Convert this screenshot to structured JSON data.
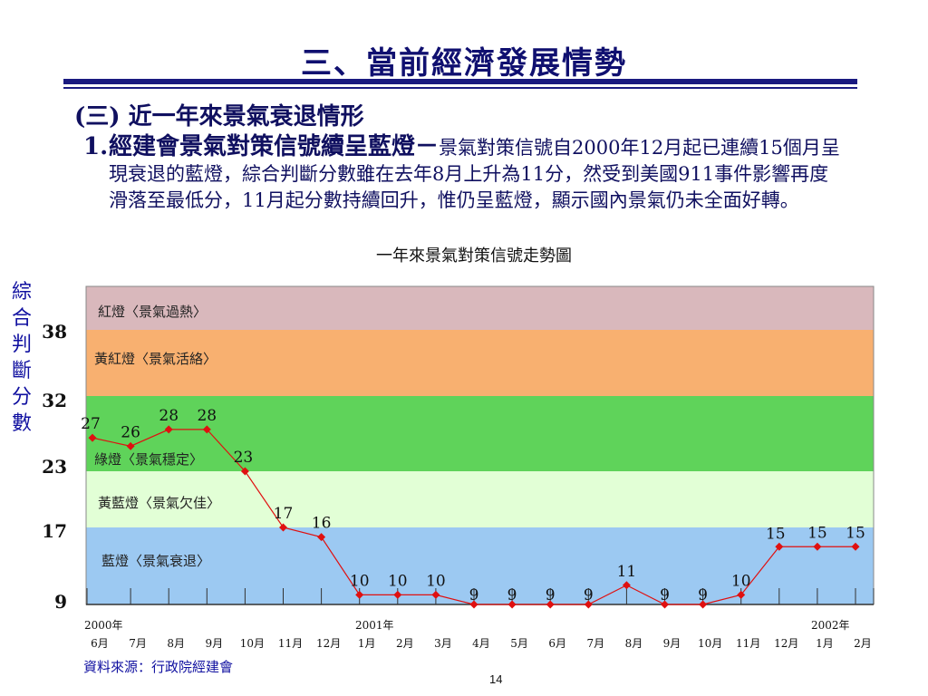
{
  "slide": {
    "title": "三、當前經濟發展情勢",
    "subheading": "(三) 近一年來景氣衰退情形",
    "item_number": "1.",
    "item_heading": "經建會景氣對策信號續呈藍燈－",
    "item_body": "景氣對策信號自2000年12月起已連續15個月呈現衰退的藍燈，綜合判斷分數雖在去年8月上升為11分，然受到美國911事件影響再度滑落至最低分，11月起分數持續回升，惟仍呈藍燈，顯示國內景氣仍未全面好轉。",
    "source": "資料來源：行政院經建會",
    "page_number": "14"
  },
  "chart_data": {
    "type": "line",
    "title": "一年來景氣對策信號走勢圖",
    "ylabel": "綜合判斷分數",
    "ylim": [
      9,
      45
    ],
    "yticks": [
      "38",
      "32",
      "23",
      "17",
      "9"
    ],
    "bands": [
      {
        "label": "紅燈〈景氣過熱〉",
        "from": 38,
        "to": 45,
        "color": "#d9b8bc"
      },
      {
        "label": "黃紅燈〈景氣活絡〉",
        "from": 32,
        "to": 38,
        "color": "#f8b070"
      },
      {
        "label": "綠燈〈景氣穩定〉",
        "from": 23,
        "to": 32,
        "color": "#5fd35a"
      },
      {
        "label": "黃藍燈〈景氣欠佳〉",
        "from": 17,
        "to": 23,
        "color": "#e2ffd6"
      },
      {
        "label": "藍燈〈景氣衰退〉",
        "from": 9,
        "to": 17,
        "color": "#9cc9f2"
      }
    ],
    "x_years": [
      {
        "label": "2000年",
        "at": 0
      },
      {
        "label": "2001年",
        "at": 7
      },
      {
        "label": "2002年",
        "at": 19
      }
    ],
    "categories": [
      "6月",
      "7月",
      "8月",
      "9月",
      "10月",
      "11月",
      "12月",
      "1月",
      "2月",
      "3月",
      "4月",
      "5月",
      "6月",
      "7月",
      "8月",
      "9月",
      "10月",
      "11月",
      "12月",
      "1月",
      "2月"
    ],
    "series": [
      {
        "values": [
          27,
          26,
          28,
          28,
          23,
          17,
          16,
          10,
          10,
          10,
          9,
          9,
          9,
          9,
          11,
          9,
          9,
          10,
          15,
          15,
          15
        ],
        "color": "#e01010"
      }
    ]
  }
}
